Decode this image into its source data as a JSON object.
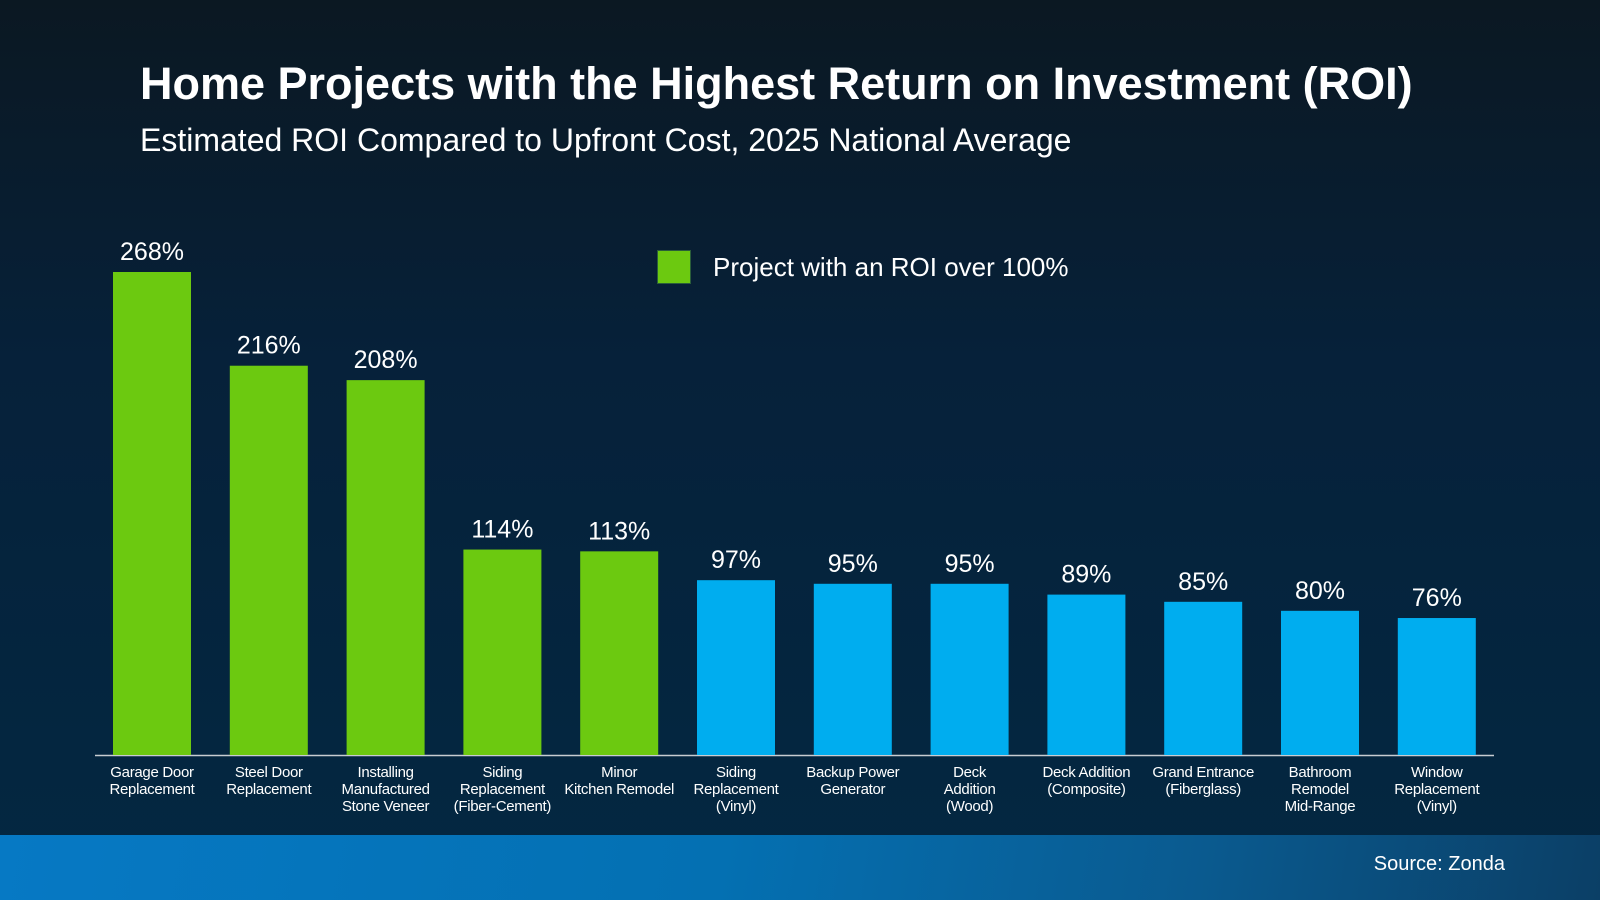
{
  "chart_data": {
    "type": "bar",
    "title": "Home Projects with the Highest Return on Investment (ROI)",
    "subtitle": "Estimated ROI Compared to Upfront Cost, 2025 National Average",
    "categories": [
      "Garage Door\nReplacement",
      "Steel Door\nReplacement",
      "Installing\nManufactured\nStone Veneer",
      "Siding\nReplacement\n(Fiber-Cement)",
      "Minor\nKitchen Remodel",
      "Siding\nReplacement\n(Vinyl)",
      "Backup Power\nGenerator",
      "Deck\nAddition\n(Wood)",
      "Deck Addition\n(Composite)",
      "Grand Entrance\n(Fiberglass)",
      "Bathroom\nRemodel\nMid-Range",
      "Window\nReplacement\n(Vinyl)"
    ],
    "values": [
      268,
      216,
      208,
      114,
      113,
      97,
      95,
      95,
      89,
      85,
      80,
      76
    ],
    "value_labels": [
      "268%",
      "216%",
      "208%",
      "114%",
      "113%",
      "97%",
      "95%",
      "95%",
      "89%",
      "85%",
      "80%",
      "76%"
    ],
    "unit": "%",
    "ylim": [
      0,
      268
    ],
    "grid": false,
    "legend": {
      "label": "Project with an ROI over 100%",
      "placement": "top-center"
    },
    "colors": {
      "over_100": "#6cc910",
      "under_100": "#00adef"
    },
    "xlabel": "",
    "ylabel": ""
  },
  "footer": {
    "source": "Source: Zonda"
  }
}
